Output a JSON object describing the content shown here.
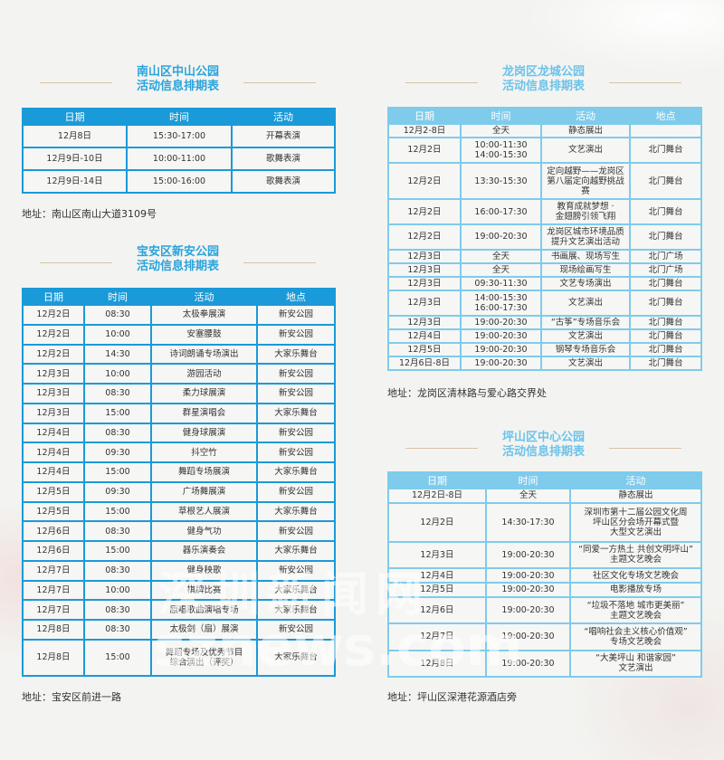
{
  "nanshan": {
    "title_line1": "南山区中山公园",
    "title_line2": "活动信息排期表",
    "headers": [
      "日期",
      "时间",
      "活动"
    ],
    "rows": [
      [
        "12月8日",
        "15:30-17:00",
        "开幕表演"
      ],
      [
        "12月9日-10日",
        "10:00-11:00",
        "歌舞表演"
      ],
      [
        "12月9日-14日",
        "15:00-16:00",
        "歌舞表演"
      ]
    ],
    "address": "地址：南山区南山大道3109号"
  },
  "baoan": {
    "title_line1": "宝安区新安公园",
    "title_line2": "活动信息排期表",
    "headers": [
      "日期",
      "时间",
      "活动",
      "地点"
    ],
    "rows": [
      [
        "12月2日",
        "08:30",
        "太极拳展演",
        "新安公园"
      ],
      [
        "12月2日",
        "10:00",
        "安塞腰鼓",
        "新安公园"
      ],
      [
        "12月2日",
        "14:30",
        "诗词朗诵专场演出",
        "大家乐舞台"
      ],
      [
        "12月3日",
        "10:00",
        "游园活动",
        "新安公园"
      ],
      [
        "12月3日",
        "08:30",
        "柔力球展演",
        "新安公园"
      ],
      [
        "12月3日",
        "15:00",
        "群星演唱会",
        "大家乐舞台"
      ],
      [
        "12月4日",
        "08:30",
        "健身球展演",
        "新安公园"
      ],
      [
        "12月4日",
        "09:30",
        "抖空竹",
        "新安公园"
      ],
      [
        "12月4日",
        "15:00",
        "舞蹈专场展演",
        "大家乐舞台"
      ],
      [
        "12月5日",
        "09:30",
        "广场舞展演",
        "新安公园"
      ],
      [
        "12月5日",
        "15:00",
        "草根艺人展演",
        "大家乐舞台"
      ],
      [
        "12月6日",
        "08:30",
        "健身气功",
        "新安公园"
      ],
      [
        "12月6日",
        "15:00",
        "器乐演奏会",
        "大家乐舞台"
      ],
      [
        "12月7日",
        "08:30",
        "健身秧歌",
        "新安公园"
      ],
      [
        "12月7日",
        "10:00",
        "棋牌比赛",
        "大家乐舞台"
      ],
      [
        "12月7日",
        "08:30",
        "原唱歌曲演唱专场",
        "大家乐舞台"
      ],
      [
        "12月8日",
        "08:30",
        "太极剑（扇）展演",
        "新安公园"
      ],
      [
        "12月8日",
        "15:00",
        "舞蹈专场及优秀节目\n综合演出（评奖）",
        "大家乐舞台"
      ]
    ],
    "address": "地址：宝安区前进一路"
  },
  "longgang": {
    "title_line1": "龙岗区龙城公园",
    "title_line2": "活动信息排期表",
    "headers": [
      "日期",
      "时间",
      "活动",
      "地点"
    ],
    "rows": [
      [
        "12月2-8日",
        "全天",
        "静态展出",
        ""
      ],
      [
        "12月2日",
        "10:00-11:30\n14:00-15:30",
        "文艺演出",
        "北门舞台"
      ],
      [
        "12月2日",
        "13:30-15:30",
        "定向越野——龙岗区\n第八届定向越野挑战赛",
        "北门舞台"
      ],
      [
        "12月2日",
        "16:00-17:30",
        "教育成就梦想 ·\n金翅膀引领飞翔",
        "北门舞台"
      ],
      [
        "12月2日",
        "19:00-20:30",
        "龙岗区城市环境品质\n提升文艺演出活动",
        "北门舞台"
      ],
      [
        "12月3日",
        "全天",
        "书画展、现场写生",
        "北门广场"
      ],
      [
        "12月3日",
        "全天",
        "现场绘画写生",
        "北门广场"
      ],
      [
        "12月3日",
        "09:30-11:30",
        "文艺专场演出",
        "北门舞台"
      ],
      [
        "12月3日",
        "14:00-15:30\n16:00-17:30",
        "文艺演出",
        "北门舞台"
      ],
      [
        "12月3日",
        "19:00-20:30",
        "“古筝”专场音乐会",
        "北门舞台"
      ],
      [
        "12月4日",
        "19:00-20:30",
        "文艺演出",
        "北门舞台"
      ],
      [
        "12月5日",
        "19:00-20:30",
        "钢琴专场音乐会",
        "北门舞台"
      ],
      [
        "12月6日-8日",
        "19:00-20:30",
        "文艺演出",
        "北门舞台"
      ]
    ],
    "address": "地址：龙岗区清林路与爱心路交界处"
  },
  "pingshan": {
    "title_line1": "坪山区中心公园",
    "title_line2": "活动信息排期表",
    "headers": [
      "日期",
      "时间",
      "活动"
    ],
    "rows": [
      [
        "12月2日-8日",
        "全天",
        "静态展出"
      ],
      [
        "12月2日",
        "14:30-17:30",
        "深圳市第十二届公园文化周\n坪山区分会场开幕式暨\n大型文艺演出"
      ],
      [
        "12月3日",
        "19:00-20:30",
        "“同爱一方热土 共创文明坪山”\n主题文艺晚会"
      ],
      [
        "12月4日",
        "19:00-20:30",
        "社区文化专场文艺晚会"
      ],
      [
        "12月5日",
        "19:00-20:30",
        "电影播放专场"
      ],
      [
        "12月6日",
        "19:00-20:30",
        "“垃圾不落地  城市更美丽”\n主题文艺晚会"
      ],
      [
        "12月7日",
        "19:00-20:30",
        "“唱响社会主义核心价值观”\n专场文艺晚会"
      ],
      [
        "12月8日",
        "19:00-20:30",
        "“大美坪山  和谐家园”\n文艺演出"
      ]
    ],
    "address": "地址：坪山区深港花源酒店旁"
  },
  "watermark": {
    "line1": "深圳新闻网",
    "line2": "sznews.com"
  },
  "colors": {
    "title_blue": "#2aa3dc",
    "header_dark": "#1a9ad8",
    "header_light": "#7fcbec"
  }
}
